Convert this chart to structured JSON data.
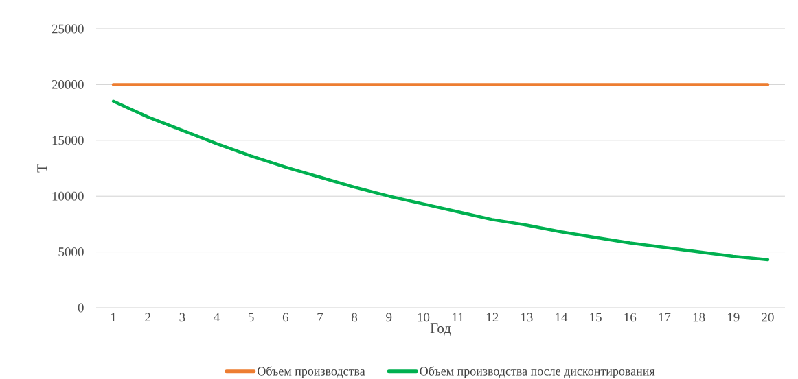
{
  "chart_data": {
    "type": "line",
    "xlabel": "Год",
    "ylabel": "Т",
    "categories": [
      "1",
      "2",
      "3",
      "4",
      "5",
      "6",
      "7",
      "8",
      "9",
      "10",
      "11",
      "12",
      "13",
      "14",
      "15",
      "16",
      "17",
      "18",
      "19",
      "20"
    ],
    "series": [
      {
        "name": "Объем производства",
        "color": "#ed7d31",
        "values": [
          20000,
          20000,
          20000,
          20000,
          20000,
          20000,
          20000,
          20000,
          20000,
          20000,
          20000,
          20000,
          20000,
          20000,
          20000,
          20000,
          20000,
          20000,
          20000,
          20000
        ]
      },
      {
        "name": "Объем производства после дисконтирования",
        "color": "#00b050",
        "values": [
          18500,
          17100,
          15900,
          14700,
          13600,
          12600,
          11700,
          10800,
          10000,
          9300,
          8600,
          7900,
          7400,
          6800,
          6300,
          5800,
          5400,
          5000,
          4600,
          4300
        ]
      }
    ],
    "ylim": [
      0,
      25000
    ],
    "yticks": [
      0,
      5000,
      10000,
      15000,
      20000,
      25000
    ],
    "grid": "y",
    "legend": "bottom",
    "marker": "none",
    "line_style": "solid"
  }
}
